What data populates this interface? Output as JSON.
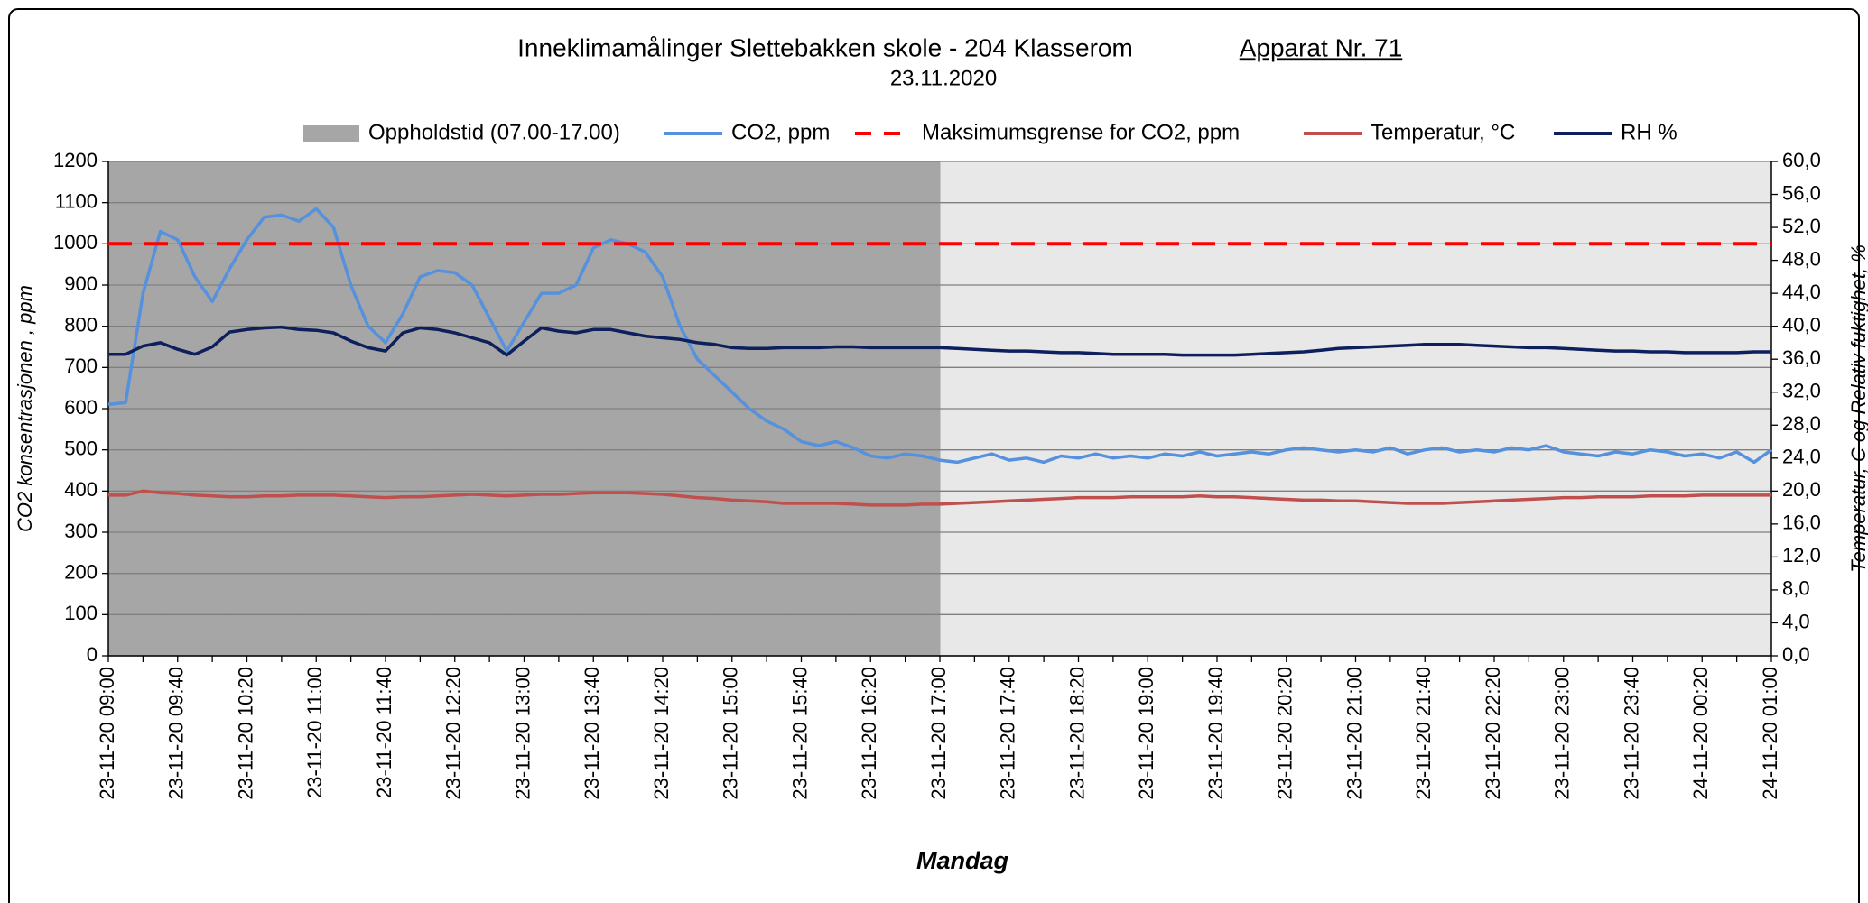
{
  "chart_data": {
    "type": "line",
    "title": "Inneklimamålinger   Slettebakken skole  -  204 Klasserom",
    "title_right": "Apparat Nr. 71",
    "subtitle": "23.11.2020",
    "xlabel": "Mandag",
    "ylabel": "CO2 konsentrasjonen , ppm",
    "y2label": "Temperatur, C og Relativ fuktighet, %",
    "categories": [
      "23-11-20 09:00",
      null,
      null,
      null,
      "23-11-20 09:40",
      null,
      null,
      null,
      "23-11-20 10:20",
      null,
      null,
      null,
      "23-11-20 11:00",
      null,
      null,
      null,
      "23-11-20 11:40",
      null,
      null,
      null,
      "23-11-20 12:20",
      null,
      null,
      null,
      "23-11-20 13:00",
      null,
      null,
      null,
      "23-11-20 13:40",
      null,
      null,
      null,
      "23-11-20 14:20",
      null,
      null,
      null,
      "23-11-20 15:00",
      null,
      null,
      null,
      "23-11-20 15:40",
      null,
      null,
      null,
      "23-11-20 16:20",
      null,
      null,
      null,
      "23-11-20 17:00",
      null,
      null,
      null,
      "23-11-20 17:40",
      null,
      null,
      null,
      "23-11-20 18:20",
      null,
      null,
      null,
      "23-11-20 19:00",
      null,
      null,
      null,
      "23-11-20 19:40",
      null,
      null,
      null,
      "23-11-20 20:20",
      null,
      null,
      null,
      "23-11-20 21:00",
      null,
      null,
      null,
      "23-11-20 21:40",
      null,
      null,
      null,
      "23-11-20 22:20",
      null,
      null,
      null,
      "23-11-20 23:00",
      null,
      null,
      null,
      "23-11-20 23:40",
      null,
      null,
      null,
      "24-11-20 00:20",
      null,
      null,
      null,
      "24-11-20 01:00"
    ],
    "ylim": [
      0,
      1200
    ],
    "yticks": [
      0,
      100,
      200,
      300,
      400,
      500,
      600,
      700,
      800,
      900,
      1000,
      1100,
      1200
    ],
    "y2lim": [
      0,
      60
    ],
    "y2ticks": [
      {
        "value": 0,
        "label": "0,0"
      },
      {
        "value": 4,
        "label": "4,0"
      },
      {
        "value": 8,
        "label": "8,0"
      },
      {
        "value": 12,
        "label": "12,0"
      },
      {
        "value": 16,
        "label": "16,0"
      },
      {
        "value": 20,
        "label": "20,0"
      },
      {
        "value": 24,
        "label": "24,0"
      },
      {
        "value": 28,
        "label": "28,0"
      },
      {
        "value": 32,
        "label": "32,0"
      },
      {
        "value": 36,
        "label": "36,0"
      },
      {
        "value": 40,
        "label": "40,0"
      },
      {
        "value": 44,
        "label": "44,0"
      },
      {
        "value": 48,
        "label": "48,0"
      },
      {
        "value": 52,
        "label": "52,0"
      },
      {
        "value": 56,
        "label": "56,0"
      },
      {
        "value": 60,
        "label": "60,0"
      }
    ],
    "grid": true,
    "legend": "top",
    "series": [
      {
        "name": "Oppholdstid (07.00-17.00)",
        "type": "bar",
        "color": "#a6a6a6",
        "values": [
          1200,
          1200,
          1200,
          1200,
          1200,
          1200,
          1200,
          1200,
          1200,
          1200,
          1200,
          1200,
          1200,
          1200,
          1200,
          1200,
          1200,
          1200,
          1200,
          1200,
          1200,
          1200,
          1200,
          1200,
          1200,
          1200,
          1200,
          1200,
          1200,
          1200,
          1200,
          1200,
          1200,
          1200,
          1200,
          1200,
          1200,
          1200,
          1200,
          1200,
          1200,
          1200,
          1200,
          1200,
          1200,
          1200,
          1200,
          1200,
          0,
          0,
          0,
          0,
          0,
          0,
          0,
          0,
          0,
          0,
          0,
          0,
          0,
          0,
          0,
          0,
          0,
          0,
          0,
          0,
          0,
          0,
          0,
          0,
          0,
          0,
          0,
          0,
          0,
          0,
          0,
          0,
          0,
          0,
          0,
          0,
          0,
          0,
          0,
          0,
          0,
          0,
          0,
          0,
          0,
          0,
          0,
          0,
          0
        ]
      },
      {
        "name": "CO2, ppm",
        "type": "line",
        "color": "#5591dc",
        "values": [
          610,
          615,
          880,
          1030,
          1010,
          920,
          860,
          940,
          1010,
          1065,
          1070,
          1055,
          1085,
          1040,
          900,
          800,
          760,
          830,
          920,
          935,
          930,
          900,
          820,
          740,
          810,
          880,
          880,
          900,
          990,
          1010,
          1000,
          980,
          920,
          800,
          720,
          680,
          640,
          600,
          570,
          550,
          520,
          510,
          520,
          505,
          485,
          480,
          490,
          485,
          475,
          470,
          480,
          490,
          475,
          480,
          470,
          485,
          480,
          490,
          480,
          485,
          480,
          490,
          485,
          495,
          485,
          490,
          495,
          490,
          500,
          505,
          500,
          495,
          500,
          495,
          505,
          490,
          500,
          505,
          495,
          500,
          495,
          505,
          500,
          510,
          495,
          490,
          485,
          495,
          490,
          500,
          495,
          485,
          490,
          480,
          495,
          470,
          500
        ]
      },
      {
        "name": "Maksimumsgrense for CO2, ppm",
        "type": "line",
        "style": "dashed",
        "color": "#ff0000",
        "values": [
          1000,
          1000,
          1000,
          1000,
          1000,
          1000,
          1000,
          1000,
          1000,
          1000,
          1000,
          1000,
          1000,
          1000,
          1000,
          1000,
          1000,
          1000,
          1000,
          1000,
          1000,
          1000,
          1000,
          1000,
          1000,
          1000,
          1000,
          1000,
          1000,
          1000,
          1000,
          1000,
          1000,
          1000,
          1000,
          1000,
          1000,
          1000,
          1000,
          1000,
          1000,
          1000,
          1000,
          1000,
          1000,
          1000,
          1000,
          1000,
          1000,
          1000,
          1000,
          1000,
          1000,
          1000,
          1000,
          1000,
          1000,
          1000,
          1000,
          1000,
          1000,
          1000,
          1000,
          1000,
          1000,
          1000,
          1000,
          1000,
          1000,
          1000,
          1000,
          1000,
          1000,
          1000,
          1000,
          1000,
          1000,
          1000,
          1000,
          1000,
          1000,
          1000,
          1000,
          1000,
          1000,
          1000,
          1000,
          1000,
          1000,
          1000,
          1000,
          1000,
          1000,
          1000,
          1000,
          1000,
          1000
        ]
      },
      {
        "name": "Temperatur, °C",
        "type": "line",
        "axis": "y2",
        "color": "#c0504d",
        "values": [
          19.5,
          19.5,
          20.0,
          19.8,
          19.7,
          19.5,
          19.4,
          19.3,
          19.3,
          19.4,
          19.4,
          19.5,
          19.5,
          19.5,
          19.4,
          19.3,
          19.2,
          19.3,
          19.3,
          19.4,
          19.5,
          19.6,
          19.5,
          19.4,
          19.5,
          19.6,
          19.6,
          19.7,
          19.8,
          19.8,
          19.8,
          19.7,
          19.6,
          19.4,
          19.2,
          19.1,
          18.9,
          18.8,
          18.7,
          18.5,
          18.5,
          18.5,
          18.5,
          18.4,
          18.3,
          18.3,
          18.3,
          18.4,
          18.4,
          18.5,
          18.6,
          18.7,
          18.8,
          18.9,
          19.0,
          19.1,
          19.2,
          19.2,
          19.2,
          19.3,
          19.3,
          19.3,
          19.3,
          19.4,
          19.3,
          19.3,
          19.2,
          19.1,
          19.0,
          18.9,
          18.9,
          18.8,
          18.8,
          18.7,
          18.6,
          18.5,
          18.5,
          18.5,
          18.6,
          18.7,
          18.8,
          18.9,
          19.0,
          19.1,
          19.2,
          19.2,
          19.3,
          19.3,
          19.3,
          19.4,
          19.4,
          19.4,
          19.5,
          19.5,
          19.5,
          19.5,
          19.5
        ]
      },
      {
        "name": "RH %",
        "type": "line",
        "axis": "y2",
        "color": "#0d1f5c",
        "values": [
          36.6,
          36.6,
          37.6,
          38.0,
          37.2,
          36.6,
          37.5,
          39.3,
          39.6,
          39.8,
          39.9,
          39.6,
          39.5,
          39.2,
          38.2,
          37.4,
          37.0,
          39.2,
          39.8,
          39.6,
          39.2,
          38.6,
          38.0,
          36.5,
          38.2,
          39.8,
          39.4,
          39.2,
          39.6,
          39.6,
          39.2,
          38.8,
          38.6,
          38.4,
          38.0,
          37.8,
          37.4,
          37.3,
          37.3,
          37.4,
          37.4,
          37.4,
          37.5,
          37.5,
          37.4,
          37.4,
          37.4,
          37.4,
          37.4,
          37.3,
          37.2,
          37.1,
          37.0,
          37.0,
          36.9,
          36.8,
          36.8,
          36.7,
          36.6,
          36.6,
          36.6,
          36.6,
          36.5,
          36.5,
          36.5,
          36.5,
          36.6,
          36.7,
          36.8,
          36.9,
          37.1,
          37.3,
          37.4,
          37.5,
          37.6,
          37.7,
          37.8,
          37.8,
          37.8,
          37.7,
          37.6,
          37.5,
          37.4,
          37.4,
          37.3,
          37.2,
          37.1,
          37.0,
          37.0,
          36.9,
          36.9,
          36.8,
          36.8,
          36.8,
          36.8,
          36.9,
          36.9
        ]
      }
    ]
  }
}
